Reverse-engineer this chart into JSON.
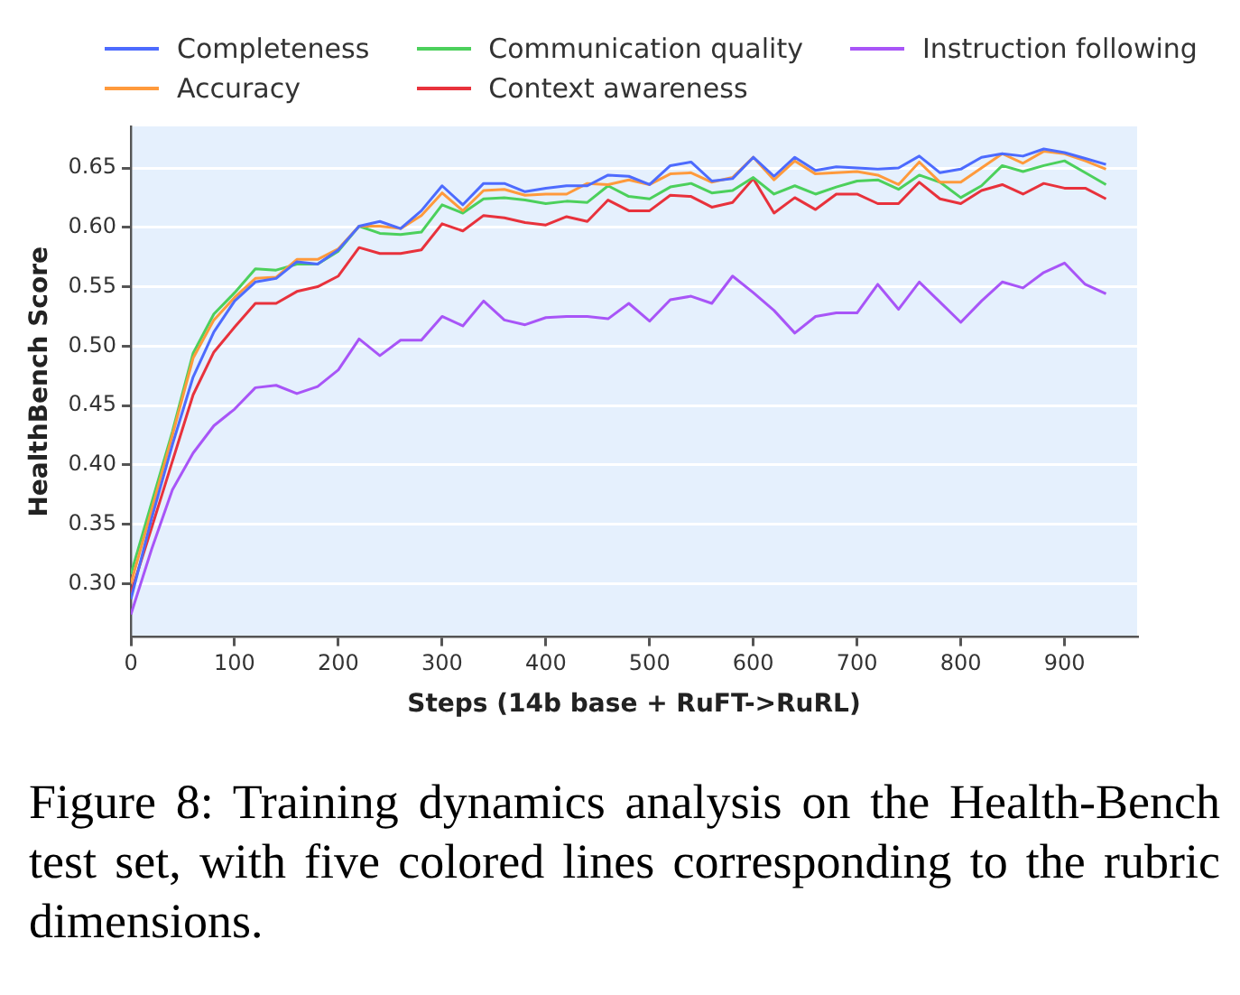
{
  "chart_data": {
    "type": "line",
    "xlabel": "Steps (14b base + RuFT->RuRL)",
    "ylabel": "HealthBench Score",
    "annotations": [
      "Figure 8: Training dynamics analysis on the Health-Bench test set, with five colored lines corresponding to the rubric dimensions."
    ],
    "x": [
      0,
      20,
      40,
      60,
      80,
      100,
      120,
      140,
      160,
      180,
      200,
      220,
      240,
      260,
      280,
      300,
      320,
      340,
      360,
      380,
      400,
      420,
      440,
      460,
      480,
      500,
      520,
      540,
      560,
      580,
      600,
      620,
      640,
      660,
      680,
      700,
      720,
      740,
      760,
      780,
      800,
      820,
      840,
      860,
      880,
      900,
      920,
      940
    ],
    "series": [
      {
        "name": "Completeness",
        "color": "#4d6bfe",
        "values": [
          0.287,
          0.355,
          0.417,
          0.474,
          0.512,
          0.538,
          0.554,
          0.557,
          0.571,
          0.569,
          0.581,
          0.601,
          0.605,
          0.599,
          0.614,
          0.635,
          0.619,
          0.637,
          0.637,
          0.63,
          0.633,
          0.635,
          0.635,
          0.644,
          0.643,
          0.636,
          0.652,
          0.655,
          0.639,
          0.641,
          0.659,
          0.643,
          0.659,
          0.648,
          0.651,
          0.65,
          0.649,
          0.65,
          0.66,
          0.646,
          0.649,
          0.659,
          0.662,
          0.66,
          0.666,
          0.663,
          0.658,
          0.653
        ]
      },
      {
        "name": "Accuracy",
        "color": "#ff9a3c",
        "values": [
          0.3,
          0.362,
          0.425,
          0.49,
          0.522,
          0.541,
          0.557,
          0.558,
          0.573,
          0.573,
          0.582,
          0.601,
          0.601,
          0.599,
          0.61,
          0.629,
          0.614,
          0.631,
          0.632,
          0.627,
          0.628,
          0.628,
          0.637,
          0.636,
          0.64,
          0.636,
          0.645,
          0.646,
          0.638,
          0.642,
          0.659,
          0.64,
          0.656,
          0.645,
          0.646,
          0.647,
          0.644,
          0.636,
          0.655,
          0.638,
          0.638,
          0.65,
          0.662,
          0.654,
          0.664,
          0.662,
          0.656,
          0.649
        ]
      },
      {
        "name": "Communication quality",
        "color": "#4cd05c",
        "values": [
          0.308,
          0.368,
          0.428,
          0.494,
          0.527,
          0.545,
          0.565,
          0.564,
          0.569,
          0.569,
          0.58,
          0.601,
          0.595,
          0.594,
          0.596,
          0.619,
          0.612,
          0.624,
          0.625,
          0.623,
          0.62,
          0.622,
          0.621,
          0.635,
          0.626,
          0.624,
          0.634,
          0.637,
          0.629,
          0.631,
          0.642,
          0.628,
          0.635,
          0.628,
          0.634,
          0.639,
          0.64,
          0.632,
          0.644,
          0.638,
          0.625,
          0.635,
          0.652,
          0.647,
          0.652,
          0.656,
          0.646,
          0.636
        ]
      },
      {
        "name": "Context awareness",
        "color": "#e8323c",
        "values": [
          0.292,
          0.347,
          0.403,
          0.459,
          0.495,
          0.516,
          0.536,
          0.536,
          0.546,
          0.55,
          0.559,
          0.583,
          0.578,
          0.578,
          0.581,
          0.603,
          0.597,
          0.61,
          0.608,
          0.604,
          0.602,
          0.609,
          0.605,
          0.623,
          0.614,
          0.614,
          0.627,
          0.626,
          0.617,
          0.621,
          0.641,
          0.612,
          0.625,
          0.615,
          0.628,
          0.628,
          0.62,
          0.62,
          0.638,
          0.624,
          0.62,
          0.631,
          0.636,
          0.628,
          0.637,
          0.633,
          0.633,
          0.624
        ]
      },
      {
        "name": "Instruction following",
        "color": "#a855f7",
        "values": [
          0.274,
          0.329,
          0.379,
          0.41,
          0.433,
          0.447,
          0.465,
          0.467,
          0.46,
          0.466,
          0.48,
          0.506,
          0.492,
          0.505,
          0.505,
          0.525,
          0.517,
          0.538,
          0.522,
          0.518,
          0.524,
          0.525,
          0.525,
          0.523,
          0.536,
          0.521,
          0.539,
          0.542,
          0.536,
          0.559,
          0.545,
          0.53,
          0.511,
          0.525,
          0.528,
          0.528,
          0.552,
          0.531,
          0.554,
          0.537,
          0.52,
          0.538,
          0.554,
          0.549,
          0.562,
          0.57,
          0.552,
          0.544
        ]
      }
    ],
    "xlim": [
      0,
      970
    ],
    "xticks": [
      0,
      100,
      200,
      300,
      400,
      500,
      600,
      700,
      800,
      900
    ],
    "ylim": [
      0.255,
      0.685
    ],
    "yticks": [
      {
        "value": 0.3,
        "label": "0.30"
      },
      {
        "value": 0.35,
        "label": "0.35"
      },
      {
        "value": 0.4,
        "label": "0.40"
      },
      {
        "value": 0.45,
        "label": "0.45"
      },
      {
        "value": 0.5,
        "label": "0.50"
      },
      {
        "value": 0.55,
        "label": "0.55"
      },
      {
        "value": 0.6,
        "label": "0.60"
      },
      {
        "value": 0.65,
        "label": "0.65"
      }
    ],
    "grid": "y",
    "legend": "top",
    "marker": "none",
    "line_style": "solid"
  }
}
